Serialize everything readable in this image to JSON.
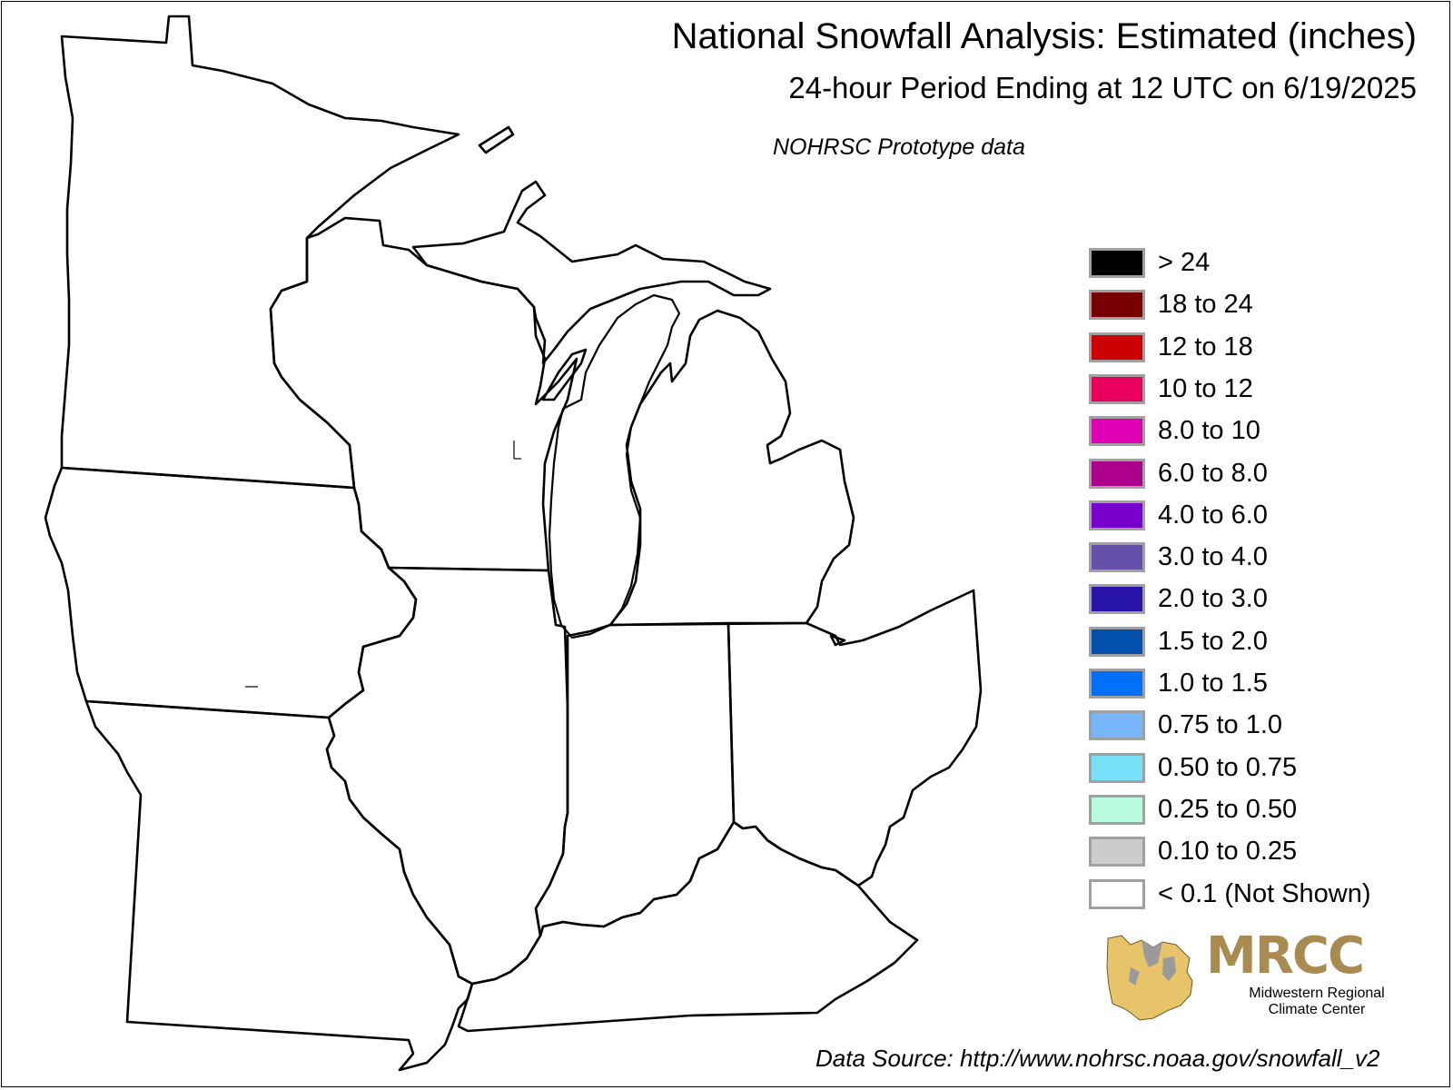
{
  "title": "National Snowfall Analysis: Estimated (inches)",
  "subtitle": "24-hour Period Ending at 12 UTC on 6/19/2025",
  "note": "NOHRSC Prototype data",
  "source": "Data Source: http://www.nohrsc.noaa.gov/snowfall_v2",
  "legend": [
    {
      "label": "> 24",
      "color": "#000000"
    },
    {
      "label": "18 to 24",
      "color": "#780000"
    },
    {
      "label": "12 to 18",
      "color": "#cc0000"
    },
    {
      "label": "10 to 12",
      "color": "#e8005c"
    },
    {
      "label": "8.0 to 10",
      "color": "#e000b4"
    },
    {
      "label": "6.0 to 8.0",
      "color": "#ac008c"
    },
    {
      "label": "4.0 to 6.0",
      "color": "#7800cc"
    },
    {
      "label": "3.0 to 4.0",
      "color": "#6450a8"
    },
    {
      "label": "2.0 to 3.0",
      "color": "#2814a8"
    },
    {
      "label": "1.5 to 2.0",
      "color": "#0050ac"
    },
    {
      "label": "1.0 to 1.5",
      "color": "#0070f8"
    },
    {
      "label": "0.75 to 1.0",
      "color": "#78b4f8"
    },
    {
      "label": "0.50 to 0.75",
      "color": "#78e0f8"
    },
    {
      "label": "0.25 to 0.50",
      "color": "#b8fce0"
    },
    {
      "label": "0.10 to 0.25",
      "color": "#cccccc"
    },
    {
      "label": "< 0.1 (Not Shown)",
      "color": "#ffffff"
    }
  ],
  "logo": {
    "name": "MRCC",
    "line1": "Midwestern Regional",
    "line2": "Climate Center",
    "color": "#a98b52"
  },
  "map": {
    "states": [
      "Minnesota",
      "Wisconsin",
      "Michigan",
      "Iowa",
      "Illinois",
      "Indiana",
      "Ohio",
      "Missouri",
      "Kentucky"
    ],
    "snowfall": "none"
  }
}
